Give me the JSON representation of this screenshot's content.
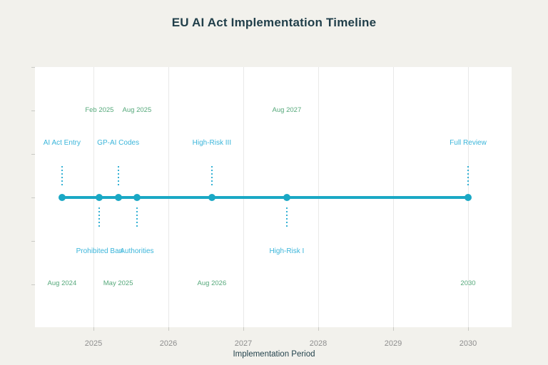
{
  "chart_data": {
    "type": "scatter",
    "subtype": "milestone-timeline",
    "title": "EU AI Act Implementation Timeline",
    "xlabel": "Implementation Period",
    "ylabel": "",
    "x_ticks": [
      "2025",
      "2026",
      "2027",
      "2028",
      "2029",
      "2030"
    ],
    "x_tick_values": [
      2025,
      2026,
      2027,
      2028,
      2029,
      2030
    ],
    "xlim": [
      2024.22,
      2030.58
    ],
    "grid": "vertical year gridlines, unlabeled small ticks on left y-axis",
    "legend": "none",
    "milestones": [
      {
        "label": "AI Act Entry",
        "date": "Aug 2024",
        "x": 2024.58,
        "label_side": "above",
        "date_side": "bottom"
      },
      {
        "label": "Prohibited Ban",
        "date": "Feb 2025",
        "x": 2025.08,
        "label_side": "below",
        "date_side": "top"
      },
      {
        "label": "GP-AI Codes",
        "date": "May 2025",
        "x": 2025.33,
        "label_side": "above",
        "date_side": "bottom"
      },
      {
        "label": "Authorities",
        "date": "Aug 2025",
        "x": 2025.58,
        "label_side": "below",
        "date_side": "top"
      },
      {
        "label": "High-Risk III",
        "date": "Aug 2026",
        "x": 2026.58,
        "label_side": "above",
        "date_side": "bottom"
      },
      {
        "label": "High-Risk I",
        "date": "Aug 2027",
        "x": 2027.58,
        "label_side": "below",
        "date_side": "top"
      },
      {
        "label": "Full Review",
        "date": "2030",
        "x": 2030.0,
        "label_side": "above",
        "date_side": "bottom"
      }
    ],
    "colors": {
      "timeline_and_dots": "#1aa8c5",
      "milestone_labels": "#3ab5da",
      "date_labels": "#55a87a",
      "title_text": "#213f4a",
      "axis_tick_text": "#8e8e8e",
      "axis_title_text": "#24434d",
      "gridline": "#e9e9e8",
      "plot_background": "#ffffff",
      "page_background": "#f2f1ec"
    }
  }
}
